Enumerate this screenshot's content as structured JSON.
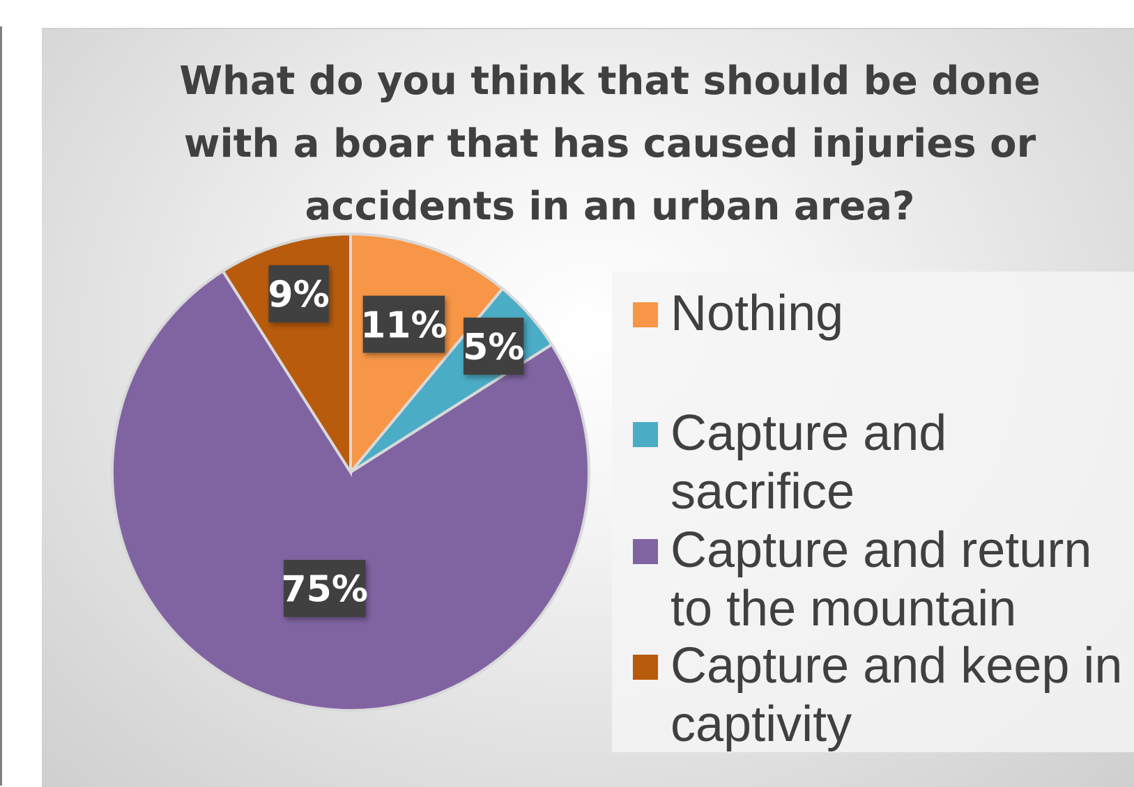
{
  "chart_data": {
    "type": "pie",
    "title": "What do you think that should be done with a boar that has caused injuries or accidents in an urban area?",
    "categories": [
      "Nothing",
      "Capture and sacrifice",
      "Capture and return to the mountain",
      "Capture and keep in captivity"
    ],
    "values": [
      11,
      5,
      75,
      9
    ],
    "data_labels": [
      "11%",
      "5%",
      "75%",
      "9%"
    ],
    "colors": [
      "#f79646",
      "#4bacc6",
      "#8064a2",
      "#b85b0d"
    ],
    "legend_position": "right"
  }
}
